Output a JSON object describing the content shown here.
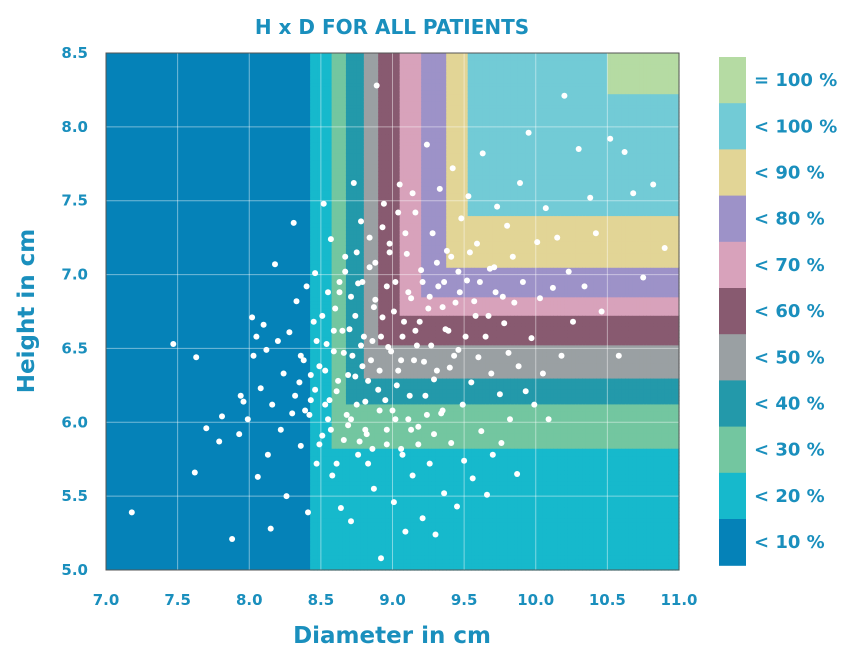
{
  "chart_data": {
    "type": "scatter",
    "title": "H x D FOR ALL PATIENTS",
    "xlabel": "Diameter in cm",
    "ylabel": "Height in cm",
    "xlim": [
      7.0,
      11.0
    ],
    "ylim": [
      5.0,
      8.5
    ],
    "xticks": [
      "7.0",
      "7.5",
      "8.0",
      "8.5",
      "9.0",
      "9.5",
      "10.0",
      "10.5",
      "11.0"
    ],
    "yticks": [
      "5.0",
      "5.5",
      "6.0",
      "6.5",
      "7.0",
      "7.5",
      "8.0",
      "8.5"
    ],
    "grid": true,
    "legend_position": "right",
    "legend": [
      {
        "label": "= 100 %",
        "color": "#b5dba3"
      },
      {
        "label": "< 100 %",
        "color": "#72cbd6"
      },
      {
        "label": "< 90 %",
        "color": "#e2d596"
      },
      {
        "label": "< 80 %",
        "color": "#9d92c8"
      },
      {
        "label": "< 70 %",
        "color": "#d8a2bb"
      },
      {
        "label": "< 60 %",
        "color": "#885a70"
      },
      {
        "label": "< 50 %",
        "color": "#9aa0a3"
      },
      {
        "label": "< 40 %",
        "color": "#2399aa"
      },
      {
        "label": "< 30 %",
        "color": "#73c6a0"
      },
      {
        "label": "< 20 %",
        "color": "#16b9cc"
      },
      {
        "label": "< 10 %",
        "color": "#0582b8"
      }
    ],
    "point_color": "#ffffff",
    "points": [
      [
        7.18,
        5.39
      ],
      [
        7.47,
        6.53
      ],
      [
        7.63,
        6.44
      ],
      [
        7.62,
        5.66
      ],
      [
        7.7,
        5.96
      ],
      [
        7.79,
        5.87
      ],
      [
        7.81,
        6.04
      ],
      [
        7.88,
        5.21
      ],
      [
        7.93,
        5.92
      ],
      [
        7.94,
        6.18
      ],
      [
        7.96,
        6.14
      ],
      [
        7.99,
        6.02
      ],
      [
        8.02,
        6.71
      ],
      [
        8.03,
        6.45
      ],
      [
        8.05,
        6.58
      ],
      [
        8.06,
        5.63
      ],
      [
        8.08,
        6.23
      ],
      [
        8.1,
        6.66
      ],
      [
        8.12,
        6.49
      ],
      [
        8.13,
        5.78
      ],
      [
        8.15,
        5.28
      ],
      [
        8.16,
        6.12
      ],
      [
        8.18,
        7.07
      ],
      [
        8.2,
        6.55
      ],
      [
        8.22,
        5.95
      ],
      [
        8.24,
        6.33
      ],
      [
        8.26,
        5.5
      ],
      [
        8.28,
        6.61
      ],
      [
        8.3,
        6.06
      ],
      [
        8.31,
        7.35
      ],
      [
        8.33,
        6.82
      ],
      [
        8.35,
        6.27
      ],
      [
        8.36,
        5.84
      ],
      [
        8.38,
        6.42
      ],
      [
        8.4,
        6.92
      ],
      [
        8.41,
        5.39
      ],
      [
        8.43,
        6.15
      ],
      [
        8.45,
        6.68
      ],
      [
        8.46,
        7.01
      ],
      [
        8.47,
        5.72
      ],
      [
        8.49,
        6.38
      ],
      [
        8.51,
        5.91
      ],
      [
        8.52,
        7.48
      ],
      [
        8.54,
        6.53
      ],
      [
        8.55,
        6.02
      ],
      [
        8.57,
        7.24
      ],
      [
        8.58,
        5.64
      ],
      [
        8.6,
        6.77
      ],
      [
        8.61,
        6.21
      ],
      [
        8.63,
        6.88
      ],
      [
        8.64,
        5.42
      ],
      [
        8.66,
        6.47
      ],
      [
        8.67,
        7.12
      ],
      [
        8.69,
        5.98
      ],
      [
        8.7,
        6.63
      ],
      [
        8.71,
        5.33
      ],
      [
        8.73,
        7.62
      ],
      [
        8.74,
        6.31
      ],
      [
        8.76,
        6.94
      ],
      [
        8.77,
        5.87
      ],
      [
        8.78,
        7.36
      ],
      [
        8.8,
        6.58
      ],
      [
        8.81,
        6.14
      ],
      [
        8.83,
        5.72
      ],
      [
        8.84,
        7.05
      ],
      [
        8.85,
        6.42
      ],
      [
        8.87,
        5.55
      ],
      [
        8.88,
        6.83
      ],
      [
        8.89,
        8.28
      ],
      [
        8.9,
        6.22
      ],
      [
        8.92,
        5.08
      ],
      [
        8.93,
        6.71
      ],
      [
        8.94,
        7.48
      ],
      [
        8.96,
        5.95
      ],
      [
        8.97,
        6.51
      ],
      [
        8.98,
        7.21
      ],
      [
        9.0,
        6.08
      ],
      [
        9.01,
        5.46
      ],
      [
        9.02,
        6.95
      ],
      [
        9.04,
        6.35
      ],
      [
        9.05,
        7.61
      ],
      [
        9.06,
        5.82
      ],
      [
        9.08,
        6.68
      ],
      [
        9.09,
        5.26
      ],
      [
        9.1,
        7.14
      ],
      [
        9.12,
        6.18
      ],
      [
        9.13,
        6.84
      ],
      [
        9.14,
        5.64
      ],
      [
        9.16,
        7.42
      ],
      [
        9.17,
        6.52
      ],
      [
        9.18,
        5.97
      ],
      [
        9.2,
        7.03
      ],
      [
        9.21,
        5.35
      ],
      [
        9.22,
        6.41
      ],
      [
        9.24,
        7.88
      ],
      [
        9.25,
        6.77
      ],
      [
        9.26,
        5.72
      ],
      [
        9.28,
        7.28
      ],
      [
        9.29,
        6.29
      ],
      [
        9.3,
        5.24
      ],
      [
        9.32,
        6.92
      ],
      [
        9.33,
        7.58
      ],
      [
        9.34,
        6.06
      ],
      [
        9.36,
        5.52
      ],
      [
        9.37,
        6.63
      ],
      [
        9.38,
        7.16
      ],
      [
        9.4,
        6.37
      ],
      [
        9.41,
        5.86
      ],
      [
        9.42,
        7.72
      ],
      [
        9.44,
        6.81
      ],
      [
        9.45,
        5.43
      ],
      [
        9.46,
        6.49
      ],
      [
        9.48,
        7.38
      ],
      [
        9.49,
        6.12
      ],
      [
        9.5,
        5.74
      ],
      [
        9.52,
        6.96
      ],
      [
        9.53,
        7.53
      ],
      [
        9.55,
        6.27
      ],
      [
        9.56,
        5.62
      ],
      [
        9.58,
        6.72
      ],
      [
        9.59,
        7.21
      ],
      [
        9.6,
        6.44
      ],
      [
        9.62,
        5.94
      ],
      [
        9.63,
        7.82
      ],
      [
        9.65,
        6.58
      ],
      [
        9.66,
        5.51
      ],
      [
        9.68,
        7.04
      ],
      [
        9.69,
        6.33
      ],
      [
        9.7,
        5.78
      ],
      [
        9.72,
        6.88
      ],
      [
        9.73,
        7.46
      ],
      [
        9.75,
        6.19
      ],
      [
        9.76,
        5.86
      ],
      [
        9.78,
        6.67
      ],
      [
        9.8,
        7.33
      ],
      [
        9.81,
        6.47
      ],
      [
        9.82,
        6.02
      ],
      [
        9.84,
        7.12
      ],
      [
        9.85,
        6.81
      ],
      [
        9.87,
        5.65
      ],
      [
        9.88,
        6.38
      ],
      [
        9.89,
        7.62
      ],
      [
        9.91,
        6.95
      ],
      [
        9.93,
        6.21
      ],
      [
        9.95,
        7.96
      ],
      [
        9.97,
        6.57
      ],
      [
        9.99,
        6.12
      ],
      [
        10.01,
        7.22
      ],
      [
        10.03,
        6.84
      ],
      [
        10.05,
        6.33
      ],
      [
        10.07,
        7.45
      ],
      [
        10.09,
        6.02
      ],
      [
        10.12,
        6.91
      ],
      [
        10.15,
        7.25
      ],
      [
        10.18,
        6.45
      ],
      [
        10.2,
        8.21
      ],
      [
        10.23,
        7.02
      ],
      [
        10.26,
        6.68
      ],
      [
        10.3,
        7.85
      ],
      [
        10.34,
        6.92
      ],
      [
        10.38,
        7.52
      ],
      [
        10.42,
        7.28
      ],
      [
        10.46,
        6.75
      ],
      [
        10.52,
        7.92
      ],
      [
        10.58,
        6.45
      ],
      [
        10.62,
        7.83
      ],
      [
        10.68,
        7.55
      ],
      [
        10.75,
        6.98
      ],
      [
        10.82,
        7.61
      ],
      [
        10.9,
        7.18
      ],
      [
        8.62,
        6.28
      ],
      [
        8.68,
        6.05
      ],
      [
        8.72,
        6.45
      ],
      [
        8.75,
        6.12
      ],
      [
        8.79,
        6.38
      ],
      [
        8.82,
        5.92
      ],
      [
        8.86,
        6.55
      ],
      [
        8.91,
        6.35
      ],
      [
        8.95,
        6.15
      ],
      [
        8.99,
        6.48
      ],
      [
        9.03,
        6.25
      ],
      [
        9.07,
        6.58
      ],
      [
        9.11,
        6.02
      ],
      [
        9.15,
        6.42
      ],
      [
        9.19,
        6.68
      ],
      [
        9.23,
        6.18
      ],
      [
        9.27,
        6.52
      ],
      [
        9.31,
        6.35
      ],
      [
        9.35,
        6.78
      ],
      [
        9.39,
        6.62
      ],
      [
        9.43,
        6.45
      ],
      [
        9.47,
        6.88
      ],
      [
        9.51,
        6.58
      ],
      [
        9.57,
        6.82
      ],
      [
        9.61,
        6.95
      ],
      [
        9.67,
        6.72
      ],
      [
        9.71,
        7.05
      ],
      [
        9.77,
        6.85
      ],
      [
        8.53,
        6.35
      ],
      [
        8.56,
        6.15
      ],
      [
        8.59,
        6.48
      ],
      [
        8.65,
        6.62
      ],
      [
        8.69,
        6.32
      ],
      [
        8.74,
        6.72
      ],
      [
        8.78,
        6.52
      ],
      [
        8.83,
        6.28
      ],
      [
        8.87,
        6.78
      ],
      [
        8.92,
        6.58
      ],
      [
        8.96,
        6.92
      ],
      [
        9.01,
        6.75
      ],
      [
        9.06,
        6.42
      ],
      [
        9.11,
        6.88
      ],
      [
        9.16,
        6.62
      ],
      [
        9.21,
        6.95
      ],
      [
        9.26,
        6.85
      ],
      [
        9.31,
        7.08
      ],
      [
        9.36,
        6.95
      ],
      [
        9.41,
        7.12
      ],
      [
        9.46,
        7.02
      ],
      [
        9.54,
        7.15
      ],
      [
        8.42,
        6.05
      ],
      [
        8.46,
        6.22
      ],
      [
        8.49,
        5.85
      ],
      [
        8.53,
        6.12
      ],
      [
        8.57,
        5.95
      ],
      [
        8.61,
        5.72
      ],
      [
        8.66,
        5.88
      ],
      [
        8.71,
        6.02
      ],
      [
        8.76,
        5.78
      ],
      [
        8.81,
        5.95
      ],
      [
        8.86,
        5.82
      ],
      [
        8.91,
        6.08
      ],
      [
        8.96,
        5.85
      ],
      [
        9.02,
        6.02
      ],
      [
        9.07,
        5.78
      ],
      [
        9.13,
        5.95
      ],
      [
        9.18,
        5.85
      ],
      [
        9.24,
        6.05
      ],
      [
        9.29,
        5.92
      ],
      [
        9.35,
        6.08
      ],
      [
        8.32,
        6.18
      ],
      [
        8.36,
        6.45
      ],
      [
        8.39,
        6.08
      ],
      [
        8.43,
        6.32
      ],
      [
        8.47,
        6.55
      ],
      [
        8.51,
        6.72
      ],
      [
        8.55,
        6.88
      ],
      [
        8.59,
        6.62
      ],
      [
        8.63,
        6.95
      ],
      [
        8.67,
        7.02
      ],
      [
        8.71,
        6.85
      ],
      [
        8.75,
        7.15
      ],
      [
        8.79,
        6.95
      ],
      [
        8.84,
        7.25
      ],
      [
        8.88,
        7.08
      ],
      [
        8.93,
        7.32
      ],
      [
        8.98,
        7.15
      ],
      [
        9.04,
        7.42
      ],
      [
        9.09,
        7.28
      ],
      [
        9.14,
        7.55
      ]
    ]
  }
}
